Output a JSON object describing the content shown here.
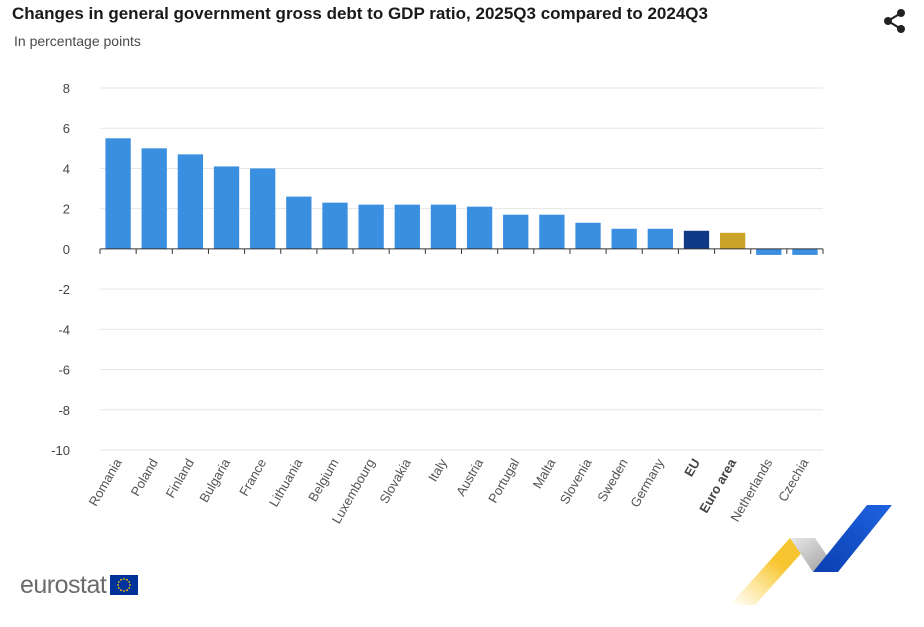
{
  "header": {
    "title": "Changes in general government gross debt to GDP ratio, 2025Q3 compared to 2024Q3",
    "subtitle": "In percentage points"
  },
  "logo": {
    "wordmark": "eurostat"
  },
  "icons": {
    "share": "share-icon",
    "flag": "eu-flag-icon"
  },
  "colors": {
    "country": "#3b8fe0",
    "eu": "#0e3a86",
    "euro_area": "#c9a227",
    "grid": "#e6e6e6",
    "axis": "#333333"
  },
  "chart_data": {
    "type": "bar",
    "title": "Changes in general government gross debt to GDP ratio, 2025Q3 compared to 2024Q3",
    "subtitle": "In percentage points",
    "xlabel": "",
    "ylabel": "",
    "ylim": [
      -10,
      8
    ],
    "yticks": [
      8,
      6,
      4,
      2,
      0,
      -2,
      -4,
      -6,
      -8,
      -10
    ],
    "grid": true,
    "legend": "none",
    "categories": [
      "Romania",
      "Poland",
      "Finland",
      "Bulgaria",
      "France",
      "Lithuania",
      "Belgium",
      "Luxembourg",
      "Slovakia",
      "Italy",
      "Austria",
      "Portugal",
      "Malta",
      "Slovenia",
      "Sweden",
      "Germany",
      "EU",
      "Euro area",
      "Netherlands",
      "Czechia"
    ],
    "values": [
      5.5,
      5.0,
      4.7,
      4.1,
      4.0,
      2.6,
      2.3,
      2.2,
      2.2,
      2.2,
      2.1,
      1.7,
      1.7,
      1.3,
      1.0,
      1.0,
      0.9,
      0.8,
      -0.3,
      -0.3
    ],
    "bar_color_keys": [
      "country",
      "country",
      "country",
      "country",
      "country",
      "country",
      "country",
      "country",
      "country",
      "country",
      "country",
      "country",
      "country",
      "country",
      "country",
      "country",
      "eu",
      "euro_area",
      "country",
      "country"
    ],
    "bold_categories": [
      "EU",
      "Euro area"
    ]
  }
}
